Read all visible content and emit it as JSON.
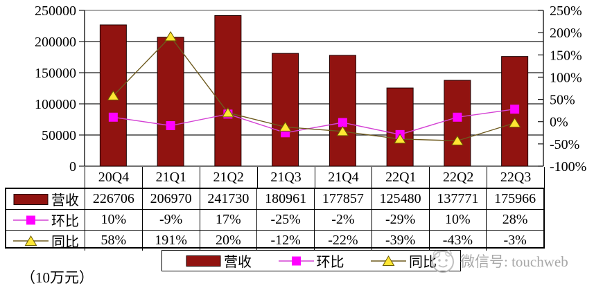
{
  "unit_label": "（10万元）",
  "watermark": {
    "icon": "smiley-logo",
    "text": "微信号: touchweb"
  },
  "chart_data": {
    "type": "bar+line combo",
    "title": "",
    "categories": [
      "20Q4",
      "21Q1",
      "21Q2",
      "21Q3",
      "21Q4",
      "22Q1",
      "22Q2",
      "22Q3"
    ],
    "series": [
      {
        "name": "营收",
        "type": "bar",
        "axis": "left",
        "color": "#911310",
        "border_color": "#1c0000",
        "values": [
          226706,
          206970,
          241730,
          180961,
          177857,
          125480,
          137771,
          175966
        ]
      },
      {
        "name": "环比",
        "type": "line",
        "axis": "right",
        "marker": "square",
        "line_color": "#d442d4",
        "marker_color": "#ff00ff",
        "values": [
          10,
          -9,
          17,
          -25,
          -2,
          -29,
          10,
          28
        ]
      },
      {
        "name": "同比",
        "type": "line",
        "axis": "right",
        "marker": "triangle",
        "line_color": "#6e5a1e",
        "marker_color": "#ffe633",
        "marker_border": "#6b5b00",
        "values": [
          58,
          191,
          20,
          -12,
          -22,
          -39,
          -43,
          -3
        ]
      }
    ],
    "left_axis": {
      "min": 0,
      "max": 250000,
      "step": 50000,
      "tick_labels": [
        "250000",
        "200000",
        "150000",
        "100000",
        "50000",
        "0"
      ]
    },
    "right_axis": {
      "min": -100,
      "max": 250,
      "step": 50,
      "tick_labels": [
        "250%",
        "200%",
        "150%",
        "100%",
        "50%",
        "0%",
        "-50%",
        "-100%"
      ]
    },
    "grid": true,
    "legend_position": "bottom"
  },
  "table": {
    "rows": [
      {
        "label": "营收",
        "key": "bar",
        "values": [
          "226706",
          "206970",
          "241730",
          "180961",
          "177857",
          "125480",
          "137771",
          "175966"
        ]
      },
      {
        "label": "环比",
        "key": "square",
        "values": [
          "10%",
          "-9%",
          "17%",
          "-25%",
          "-2%",
          "-29%",
          "10%",
          "28%"
        ]
      },
      {
        "label": "同比",
        "key": "triangle",
        "values": [
          "58%",
          "191%",
          "20%",
          "-12%",
          "-22%",
          "-39%",
          "-43%",
          "-3%"
        ]
      }
    ]
  },
  "legend": {
    "items": [
      "营收",
      "环比",
      "同比"
    ]
  }
}
